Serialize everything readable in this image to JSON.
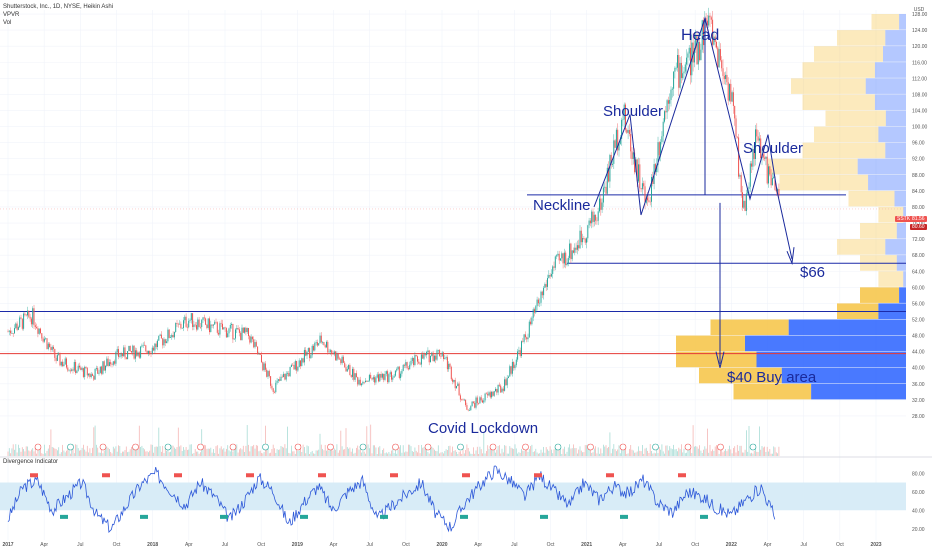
{
  "legend": {
    "line1": "Shutterstock, Inc., 1D, NYSE, Heikin Ashi",
    "line2": "VPVR",
    "line3": "Vol"
  },
  "oscillator": {
    "title": "Divergence Indicator"
  },
  "currency": "USD",
  "colors": {
    "up": "#26a69a",
    "down": "#ef5350",
    "annotation": "#1a2a9c",
    "support_red": "#e53935",
    "vp_blue": "#2962ff",
    "vp_yellow": "#f6c343",
    "osc_line": "#2d58d8",
    "osc_band": "#d8ecf7"
  },
  "annotations": {
    "head": "Head",
    "shoulder_left": "Shoulder",
    "shoulder_right": "Shoulder",
    "neckline": "Neckline",
    "target_66": "$66",
    "buy_area": "$40 Buy area",
    "covid": "Covid Lockdown"
  },
  "current_price_tags": {
    "symbol": "SSTK",
    "price": "81.56",
    "second": "80.60"
  },
  "chart_data": {
    "type": "line",
    "title": "Shutterstock, Inc., 1D, NYSE, Heikin Ashi",
    "price_axis": {
      "ticks": [
        "128.00",
        "124.00",
        "120.00",
        "116.00",
        "112.00",
        "108.00",
        "104.00",
        "100.00",
        "96.00",
        "92.00",
        "88.00",
        "84.00",
        "80.00",
        "76.00",
        "72.00",
        "68.00",
        "64.00",
        "60.00",
        "56.00",
        "52.00",
        "48.00",
        "44.00",
        "40.00",
        "36.00",
        "32.00",
        "28.00"
      ],
      "range": [
        26,
        129
      ]
    },
    "time_axis": {
      "ticks": [
        "2017",
        "Apr",
        "Jul",
        "Oct",
        "2018",
        "Apr",
        "Jul",
        "Oct",
        "2019",
        "Apr",
        "Jul",
        "Oct",
        "2020",
        "Apr",
        "Jul",
        "Oct",
        "2021",
        "Apr",
        "Jul",
        "Oct",
        "2022",
        "Apr",
        "Jul",
        "Oct",
        "2023"
      ]
    },
    "series": [
      {
        "x": [
          "2017-01",
          "2017-03",
          "2017-05",
          "2017-08",
          "2017-10",
          "2018-01",
          "2018-04",
          "2018-06",
          "2018-09",
          "2018-11",
          "2019-01",
          "2019-03",
          "2019-06",
          "2019-09",
          "2019-11",
          "2020-01",
          "2020-03",
          "2020-06",
          "2020-08",
          "2020-10",
          "2020-12",
          "2021-02",
          "2021-04",
          "2021-06",
          "2021-08",
          "2021-10",
          "2021-11",
          "2022-01",
          "2022-02",
          "2022-03",
          "2022-04",
          "2022-05"
        ],
        "y": [
          49,
          53,
          42,
          38,
          43,
          45,
          52,
          50,
          48,
          35,
          41,
          47,
          37,
          38,
          42,
          44,
          30,
          35,
          48,
          64,
          70,
          79,
          103,
          80,
          112,
          118,
          127,
          108,
          79,
          97,
          89,
          81
        ]
      }
    ],
    "levels": {
      "neckline": 83,
      "target": 66,
      "blue_support": 54,
      "red_support": 43.5,
      "buy_area": 40
    },
    "volume_profile": {
      "price_bins": [
        126,
        122,
        118,
        114,
        110,
        106,
        102,
        98,
        94,
        90,
        86,
        82,
        78,
        74,
        70,
        66,
        62,
        58,
        54,
        50,
        46,
        42,
        38,
        34
      ],
      "up_share": [
        0.2,
        0.3,
        0.25,
        0.3,
        0.35,
        0.3,
        0.25,
        0.3,
        0.2,
        0.35,
        0.3,
        0.2,
        0.1,
        0.2,
        0.3,
        0.2,
        0.1,
        0.15,
        0.4,
        0.6,
        0.7,
        0.65,
        0.6,
        0.55
      ],
      "total": [
        0.15,
        0.3,
        0.4,
        0.45,
        0.5,
        0.45,
        0.35,
        0.4,
        0.45,
        0.6,
        0.55,
        0.25,
        0.12,
        0.2,
        0.3,
        0.2,
        0.12,
        0.2,
        0.3,
        0.85,
        1.0,
        1.0,
        0.9,
        0.75
      ]
    },
    "oscillator": {
      "name": "Divergence Indicator",
      "ticks": [
        "80.00",
        "60.00",
        "40.00",
        "20.00"
      ],
      "band": [
        40,
        70
      ],
      "range": [
        10,
        90
      ],
      "values": [
        30,
        65,
        72,
        40,
        55,
        70,
        35,
        20,
        45,
        68,
        80,
        62,
        45,
        70,
        55,
        30,
        50,
        75,
        60,
        25,
        48,
        66,
        40,
        60,
        72,
        30,
        45,
        58,
        70,
        35,
        22,
        50,
        68,
        84,
        72,
        55,
        78,
        60,
        45,
        70,
        52,
        66,
        58,
        73,
        48,
        38,
        60,
        55,
        42,
        35,
        52,
        65,
        30
      ],
      "bull_labels": 9,
      "bear_labels": 10
    }
  }
}
